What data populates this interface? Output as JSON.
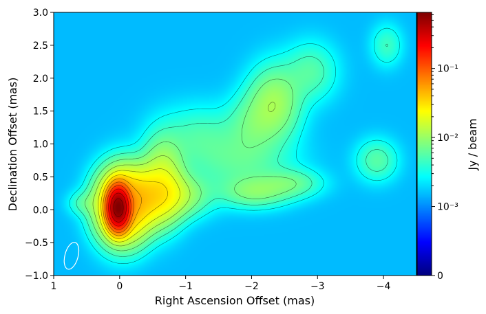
{
  "chart_data": {
    "type": "heatmap",
    "title": "",
    "xlabel": "Right Ascension Offset (mas)",
    "ylabel": "Declination Offset (mas)",
    "colorbar_label": "Jy / beam",
    "colormap": "jet",
    "colorbar_scale": "symlog",
    "xlim": [
      1,
      -4.5
    ],
    "ylim": [
      -1.0,
      3.0
    ],
    "x_ticks": [
      {
        "value": 1,
        "label": "1"
      },
      {
        "value": 0,
        "label": "0"
      },
      {
        "value": -1,
        "label": "−1"
      },
      {
        "value": -2,
        "label": "−2"
      },
      {
        "value": -3,
        "label": "−3"
      },
      {
        "value": -4,
        "label": "−4"
      }
    ],
    "y_ticks": [
      {
        "value": -1.0,
        "label": "−1.0"
      },
      {
        "value": -0.5,
        "label": "−0.5"
      },
      {
        "value": 0.0,
        "label": "0.0"
      },
      {
        "value": 0.5,
        "label": "0.5"
      },
      {
        "value": 1.0,
        "label": "1.0"
      },
      {
        "value": 1.5,
        "label": "1.5"
      },
      {
        "value": 2.0,
        "label": "2.0"
      },
      {
        "value": 2.5,
        "label": "2.5"
      },
      {
        "value": 3.0,
        "label": "3.0"
      }
    ],
    "colorbar_ticks": [
      {
        "value": 0,
        "label": "0"
      },
      {
        "value": 0.001,
        "label": "10⁻³"
      },
      {
        "value": 0.01,
        "label": "10⁻²"
      },
      {
        "value": 0.1,
        "label": "10⁻¹"
      }
    ],
    "colorbar_range": [
      0,
      0.65
    ],
    "background_level": 0.0015,
    "components": [
      {
        "x": 0.02,
        "y": 0.03,
        "sx": 0.09,
        "sy": 0.17,
        "rot": 0,
        "amp": 0.62
      },
      {
        "x": -0.05,
        "y": 0.06,
        "sx": 0.24,
        "sy": 0.33,
        "rot": 0,
        "amp": 0.045
      },
      {
        "x": -0.38,
        "y": 0.18,
        "sx": 0.3,
        "sy": 0.26,
        "rot": 0,
        "amp": 0.02
      },
      {
        "x": -0.65,
        "y": 0.45,
        "sx": 0.2,
        "sy": 0.38,
        "rot": 0,
        "amp": 0.013
      },
      {
        "x": -0.9,
        "y": 0.22,
        "sx": 0.3,
        "sy": 0.2,
        "rot": 0,
        "amp": 0.008
      },
      {
        "x": -2.05,
        "y": 0.27,
        "sx": 0.33,
        "sy": 0.15,
        "rot": 0,
        "amp": 0.006
      },
      {
        "x": -2.6,
        "y": 0.4,
        "sx": 0.3,
        "sy": 0.14,
        "rot": 0,
        "amp": 0.0045
      },
      {
        "x": -1.85,
        "y": 0.7,
        "sx": 0.5,
        "sy": 0.3,
        "rot": 0,
        "amp": 0.004
      },
      {
        "x": -2.35,
        "y": 1.62,
        "sx": 0.25,
        "sy": 0.35,
        "rot": 0,
        "amp": 0.009
      },
      {
        "x": -2.0,
        "y": 1.3,
        "sx": 0.25,
        "sy": 0.3,
        "rot": 0,
        "amp": 0.004
      },
      {
        "x": -2.9,
        "y": 2.1,
        "sx": 0.25,
        "sy": 0.28,
        "rot": 0,
        "amp": 0.004
      },
      {
        "x": -1.2,
        "y": 1.1,
        "sx": 0.4,
        "sy": 0.3,
        "rot": 0,
        "amp": 0.0035
      },
      {
        "x": -3.9,
        "y": 0.75,
        "sx": 0.2,
        "sy": 0.2,
        "rot": 0,
        "amp": 0.0042
      },
      {
        "x": -4.05,
        "y": 2.5,
        "sx": 0.15,
        "sy": 0.2,
        "rot": 0,
        "amp": 0.003
      },
      {
        "x": 0.55,
        "y": 0.1,
        "sx": 0.15,
        "sy": 0.12,
        "rot": 0,
        "amp": 0.003
      }
    ],
    "beam": {
      "x": 0.73,
      "y": -0.7,
      "major_mas": 0.42,
      "minor_mas": 0.2,
      "pa_deg": 15,
      "color": "#ffffff"
    }
  }
}
